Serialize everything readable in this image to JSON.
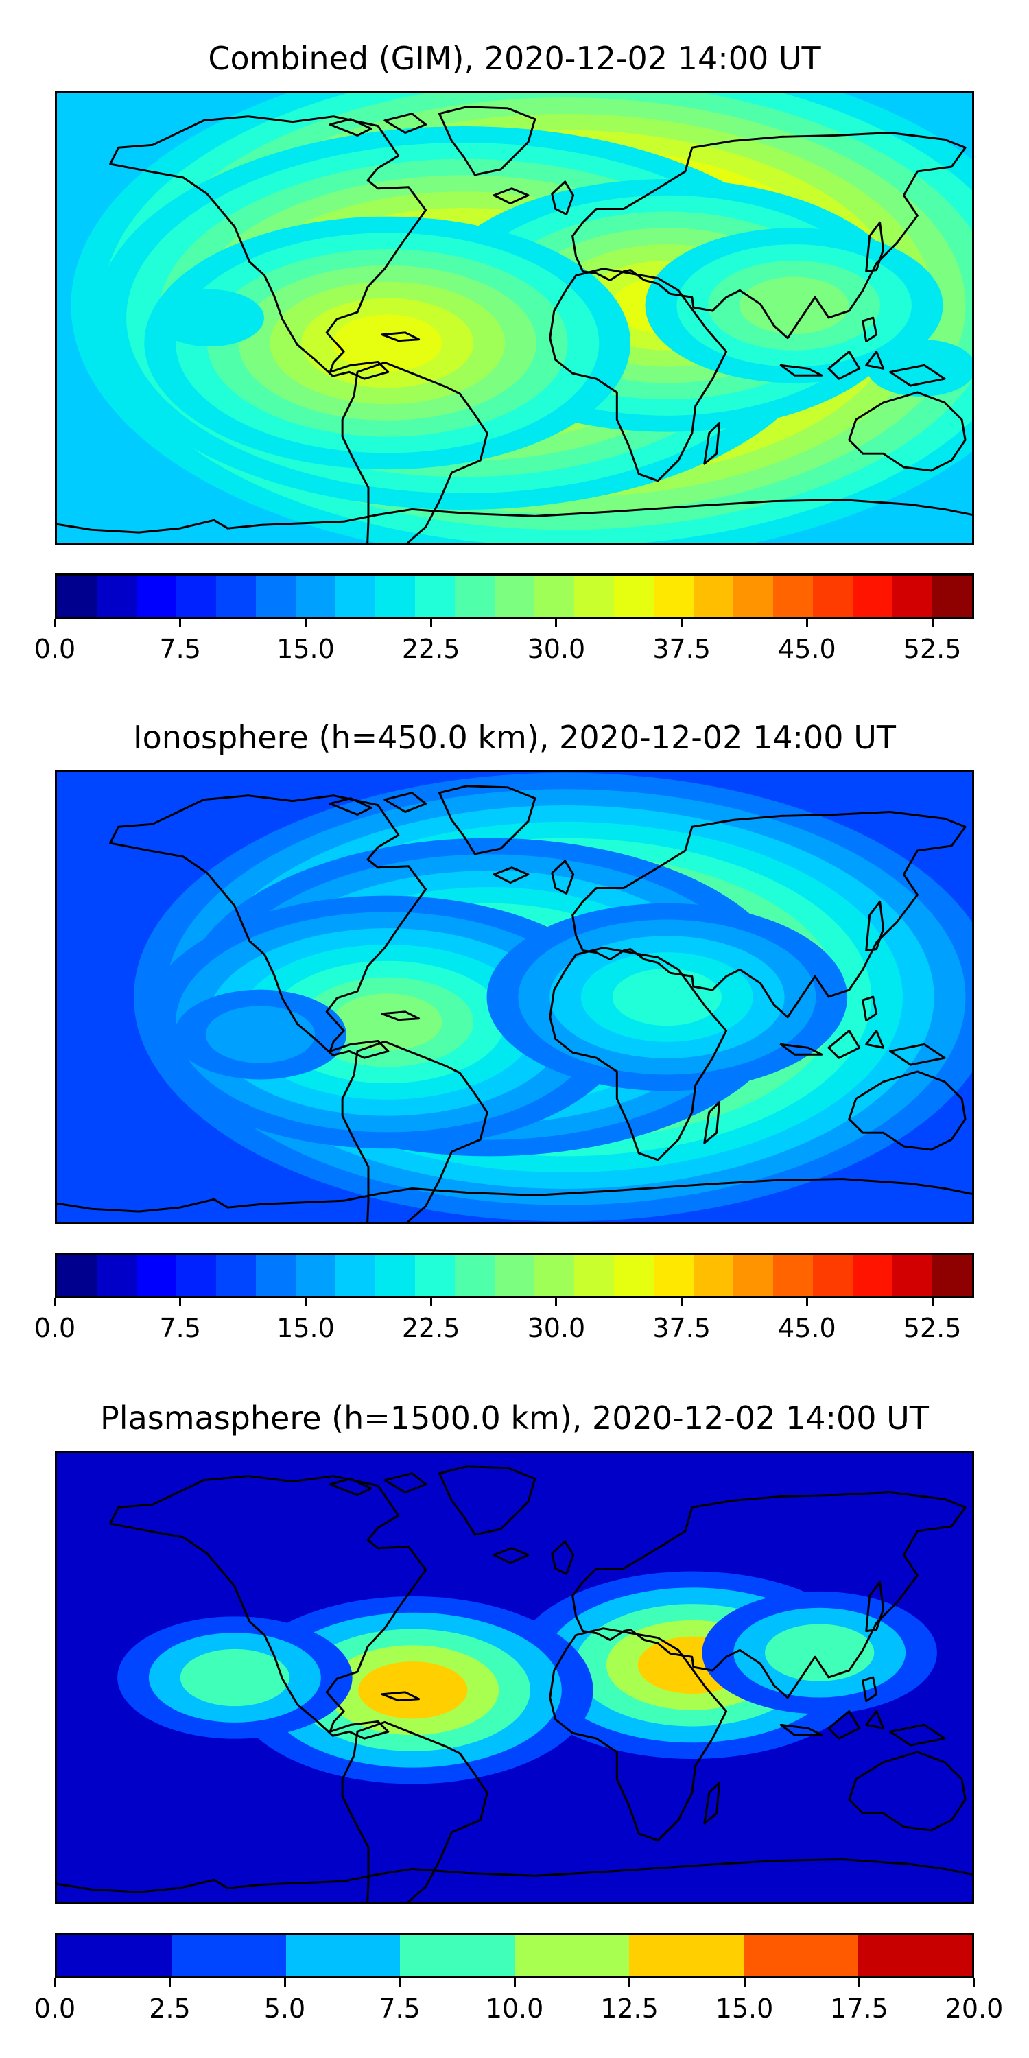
{
  "panels": [
    {
      "title": "Combined (GIM), 2020-12-02 14:00 UT",
      "colorbar": {
        "min": 0,
        "max": 55,
        "tick_labels": [
          "0.0",
          "7.5",
          "15.0",
          "22.5",
          "30.0",
          "37.5",
          "45.0",
          "52.5"
        ],
        "tick_values": [
          0,
          7.5,
          15,
          22.5,
          30,
          37.5,
          45,
          52.5
        ],
        "colors": [
          "#00008f",
          "#0000c8",
          "#0000ff",
          "#0022ff",
          "#0045ff",
          "#0078ff",
          "#00a0ff",
          "#00ccff",
          "#00e8f0",
          "#20ffd8",
          "#50ffaa",
          "#7cff80",
          "#a0ff56",
          "#c8ff2c",
          "#e6ff10",
          "#ffe800",
          "#ffbf00",
          "#ff9400",
          "#ff6400",
          "#ff3c00",
          "#ff1400",
          "#d20000",
          "#8f0000"
        ]
      },
      "field": {
        "background_level": 7,
        "blobs": [
          {
            "lon": 20,
            "lat": 5,
            "level": 22
          },
          {
            "lon": -20,
            "lat": 0,
            "level": 18
          },
          {
            "lon": 60,
            "lat": 5,
            "level": 14
          },
          {
            "lon": -50,
            "lat": -10,
            "level": 14
          },
          {
            "lon": 110,
            "lat": 5,
            "level": 11
          },
          {
            "lon": -120,
            "lat": 0,
            "level": 8
          },
          {
            "lon": 160,
            "lat": -20,
            "level": 8
          }
        ]
      }
    },
    {
      "title": "Ionosphere  (h=450.0 km), 2020-12-02 14:00 UT",
      "colorbar": {
        "min": 0,
        "max": 55,
        "tick_labels": [
          "0.0",
          "7.5",
          "15.0",
          "22.5",
          "30.0",
          "37.5",
          "45.0",
          "52.5"
        ],
        "tick_values": [
          0,
          7.5,
          15,
          22.5,
          30,
          37.5,
          45,
          52.5
        ],
        "colors": [
          "#00008f",
          "#0000c8",
          "#0000ff",
          "#0022ff",
          "#0045ff",
          "#0078ff",
          "#00a0ff",
          "#00ccff",
          "#00e8f0",
          "#20ffd8",
          "#50ffaa",
          "#7cff80",
          "#a0ff56",
          "#c8ff2c",
          "#e6ff10",
          "#ffe800",
          "#ffbf00",
          "#ff9400",
          "#ff6400",
          "#ff3c00",
          "#ff1400",
          "#d20000",
          "#8f0000"
        ]
      },
      "field": {
        "background_level": 4,
        "blobs": [
          {
            "lon": 20,
            "lat": 0,
            "level": 17
          },
          {
            "lon": -10,
            "lat": 0,
            "level": 13
          },
          {
            "lon": -50,
            "lat": -10,
            "level": 11
          },
          {
            "lon": 60,
            "lat": 0,
            "level": 9
          },
          {
            "lon": -100,
            "lat": -15,
            "level": 6
          }
        ]
      }
    },
    {
      "title": "Plasmasphere (h=1500.0 km), 2020-12-02 14:00 UT",
      "colorbar": {
        "min": 0,
        "max": 20,
        "tick_labels": [
          "0.0",
          "2.5",
          "5.0",
          "7.5",
          "10.0",
          "12.5",
          "15.0",
          "17.5",
          "20.0"
        ],
        "tick_values": [
          0,
          2.5,
          5,
          7.5,
          10,
          12.5,
          15,
          17.5,
          20
        ],
        "colors": [
          "#0000c8",
          "#0045ff",
          "#00c0ff",
          "#40ffb8",
          "#a8ff50",
          "#ffcf00",
          "#ff5a00",
          "#c80000"
        ]
      },
      "field": {
        "background_level": 0,
        "blobs": [
          {
            "lon": 70,
            "lat": 5,
            "level": 5
          },
          {
            "lon": -40,
            "lat": -5,
            "level": 5
          },
          {
            "lon": 120,
            "lat": 10,
            "level": 3
          },
          {
            "lon": -110,
            "lat": 0,
            "level": 3
          }
        ]
      }
    }
  ]
}
